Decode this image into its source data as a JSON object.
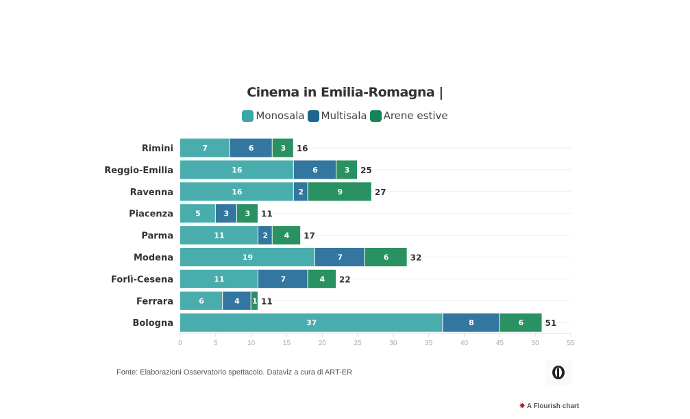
{
  "chart_data": {
    "type": "bar",
    "orientation": "horizontal",
    "stacked": true,
    "title": "Cinema in Emilia-Romagna |",
    "categories": [
      "Rimini",
      "Reggio-Emilia",
      "Ravenna",
      "Piacenza",
      "Parma",
      "Modena",
      "Forlì-Cesena",
      "Ferrara",
      "Bologna"
    ],
    "series": [
      {
        "name": "Monosala",
        "color": "#4aadad",
        "legend_color": "#3aa6a6",
        "values": [
          7,
          16,
          16,
          5,
          11,
          19,
          11,
          6,
          37
        ]
      },
      {
        "name": "Multisala",
        "color": "#33769f",
        "legend_color": "#1f6591",
        "values": [
          6,
          6,
          2,
          3,
          2,
          7,
          7,
          4,
          8
        ]
      },
      {
        "name": "Arene estive",
        "color": "#2a9162",
        "legend_color": "#14855a",
        "values": [
          3,
          3,
          9,
          3,
          4,
          6,
          4,
          1,
          6
        ]
      }
    ],
    "totals": [
      16,
      25,
      27,
      11,
      17,
      32,
      22,
      11,
      51
    ],
    "xlim": [
      0,
      55
    ],
    "xticks": [
      0,
      5,
      10,
      15,
      20,
      25,
      30,
      35,
      40,
      45,
      50,
      55
    ],
    "grid": true,
    "legend_position": "top-center"
  },
  "footer": {
    "source": "Fonte: Elaborazioni Osservatorio spettacolo. Dataviz a cura di ART-ER",
    "flourish": "A Flourish chart"
  }
}
